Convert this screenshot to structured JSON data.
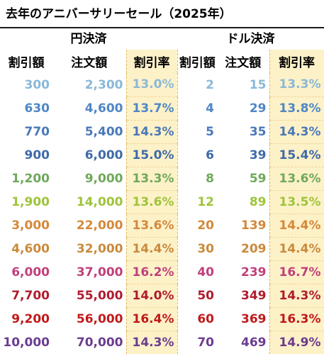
{
  "title": "去年のアニバーサリーセール（2025年）",
  "groups": {
    "yen": "円決済",
    "dollar": "ドル決済"
  },
  "headers": {
    "yen_discount": "割引額",
    "yen_order": "注文額",
    "yen_rate": "割引率",
    "usd_discount": "割引額",
    "usd_order": "注文額",
    "usd_rate": "割引率"
  },
  "rows": [
    {
      "yd": "300",
      "yo": "2,300",
      "yr": "13.0%",
      "ud": "2",
      "uo": "15",
      "ur": "13.3%",
      "color": "#8ab8d8"
    },
    {
      "yd": "630",
      "yo": "4,600",
      "yr": "13.7%",
      "ud": "4",
      "uo": "29",
      "ur": "13.8%",
      "color": "#4f86c6"
    },
    {
      "yd": "770",
      "yo": "5,400",
      "yr": "14.3%",
      "ud": "5",
      "uo": "35",
      "ur": "14.3%",
      "color": "#4a78b8"
    },
    {
      "yd": "900",
      "yo": "6,000",
      "yr": "15.0%",
      "ud": "6",
      "uo": "39",
      "ur": "15.4%",
      "color": "#3f6aa8"
    },
    {
      "yd": "1,200",
      "yo": "9,000",
      "yr": "13.3%",
      "ud": "8",
      "uo": "59",
      "ur": "13.6%",
      "color": "#6fa85a"
    },
    {
      "yd": "1,900",
      "yo": "14,000",
      "yr": "13.6%",
      "ud": "12",
      "uo": "89",
      "ur": "13.5%",
      "color": "#9ec43a"
    },
    {
      "yd": "3,000",
      "yo": "22,000",
      "yr": "13.6%",
      "ud": "20",
      "uo": "139",
      "ur": "14.4%",
      "color": "#d4883a"
    },
    {
      "yd": "4,600",
      "yo": "32,000",
      "yr": "14.4%",
      "ud": "30",
      "uo": "209",
      "ur": "14.4%",
      "color": "#c98a3c"
    },
    {
      "yd": "6,000",
      "yo": "37,000",
      "yr": "16.2%",
      "ud": "40",
      "uo": "239",
      "ur": "16.7%",
      "color": "#c0407a"
    },
    {
      "yd": "7,700",
      "yo": "55,000",
      "yr": "14.0%",
      "ud": "50",
      "uo": "349",
      "ur": "14.3%",
      "color": "#b01c2e"
    },
    {
      "yd": "9,200",
      "yo": "56,000",
      "yr": "16.4%",
      "ud": "60",
      "uo": "369",
      "ur": "16.3%",
      "color": "#c01a1a"
    },
    {
      "yd": "10,000",
      "yo": "70,000",
      "yr": "14.3%",
      "ud": "70",
      "uo": "469",
      "ur": "14.9%",
      "color": "#6b3c8e"
    }
  ]
}
